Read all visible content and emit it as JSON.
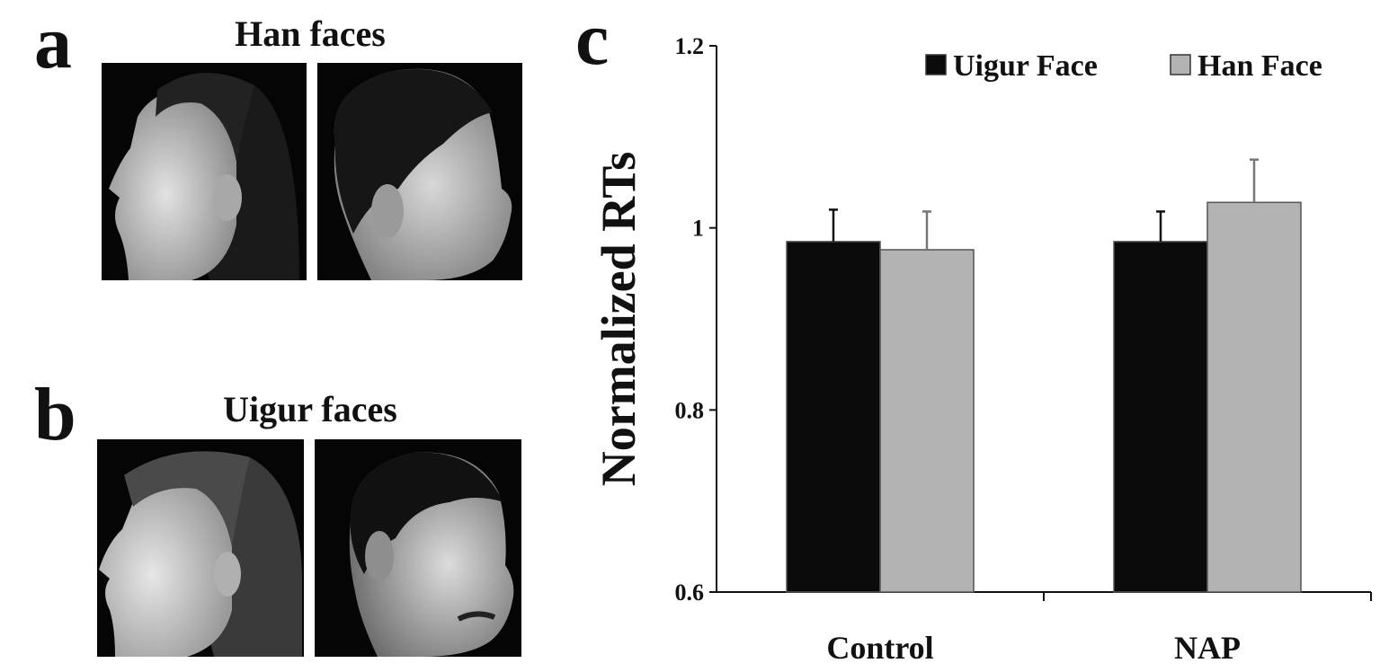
{
  "panels": {
    "a": {
      "letter": "a",
      "title": "Han faces"
    },
    "b": {
      "letter": "b",
      "title": "Uigur faces"
    },
    "c": {
      "letter": "c"
    }
  },
  "chart_data": {
    "type": "bar",
    "categories": [
      "Control",
      "NAP"
    ],
    "series": [
      {
        "name": "Uigur Face",
        "values": [
          0.985,
          0.985
        ],
        "errors": [
          0.035,
          0.033
        ],
        "color": "#0a0a0a"
      },
      {
        "name": "Han Face",
        "values": [
          0.976,
          1.028
        ],
        "errors": [
          0.042,
          0.047
        ],
        "color": "#b3b3b3"
      }
    ],
    "ylabel": "Normalized RTs",
    "ylim": [
      0.6,
      1.2
    ],
    "yticks": [
      "0.6",
      "0.8",
      "1",
      "1.2"
    ],
    "grid": false,
    "legend": "top-right"
  }
}
